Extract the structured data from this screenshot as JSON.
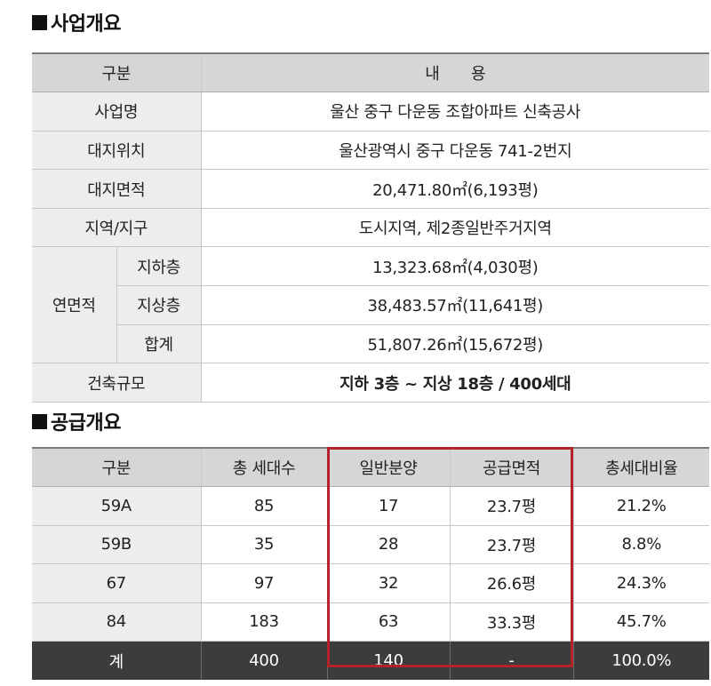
{
  "overview": {
    "title": "사업개요",
    "header": {
      "category": "구분",
      "content": "내　　용"
    },
    "rows": [
      {
        "label": "사업명",
        "value": "울산 중구 다운동 조합아파트 신축공사"
      },
      {
        "label": "대지위치",
        "value": "울산광역시 중구 다운동 741-2번지"
      },
      {
        "label": "대지면적",
        "value": "20,471.80㎡(6,193평)"
      },
      {
        "label": "지역/지구",
        "value": "도시지역, 제2종일반주거지역"
      }
    ],
    "floor_area": {
      "label": "연면적",
      "rows": [
        {
          "label": "지하층",
          "value": "13,323.68㎡(4,030평)"
        },
        {
          "label": "지상층",
          "value": "38,483.57㎡(11,641평)"
        },
        {
          "label": "합계",
          "value": "51,807.26㎡(15,672평)"
        }
      ]
    },
    "scale": {
      "label": "건축규모",
      "value": "지하 3층 ~ 지상 18층 / 400세대"
    }
  },
  "supply": {
    "title": "공급개요",
    "headers": [
      "구분",
      "총 세대수",
      "일반분양",
      "공급면적",
      "총세대비율"
    ],
    "rows": [
      [
        "59A",
        "85",
        "17",
        "23.7평",
        "21.2%"
      ],
      [
        "59B",
        "35",
        "28",
        "23.7평",
        "8.8%"
      ],
      [
        "67",
        "97",
        "32",
        "26.6평",
        "24.3%"
      ],
      [
        "84",
        "183",
        "63",
        "33.3평",
        "45.7%"
      ]
    ],
    "total": [
      "계",
      "400",
      "140",
      "-",
      "100.0%"
    ]
  },
  "colors": {
    "highlight": "#b5232a",
    "header_bg": "#d6d6d6",
    "total_bg": "#3c3c3c"
  }
}
